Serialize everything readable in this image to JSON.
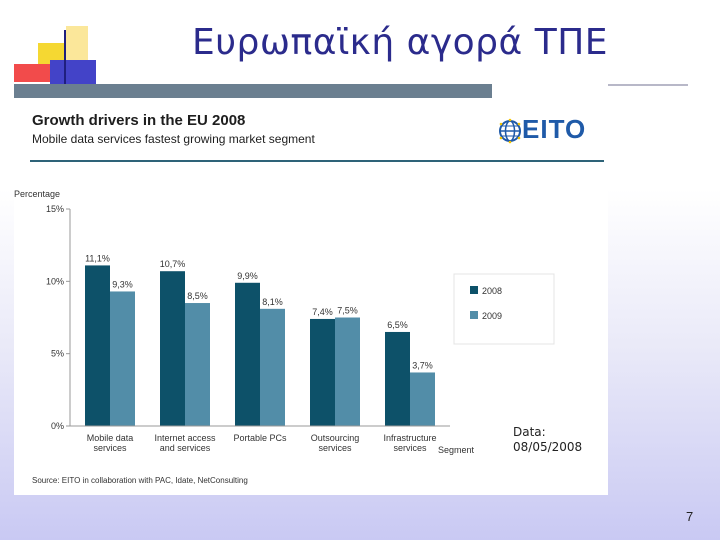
{
  "slide": {
    "title": "Ευρωπαϊκή αγορά ΤΠΕ",
    "page_number": "7",
    "data_note_line1": "Data:",
    "data_note_line2": "08/05/2008"
  },
  "panel": {
    "heading": "Growth drivers in the EU 2008",
    "subheading": "Mobile data services fastest growing market segment",
    "logo_text": "EITO",
    "source": "Source: EITO in collaboration with PAC, Idate, NetConsulting"
  },
  "chart_data": {
    "type": "bar",
    "ylabel": "Percentage",
    "xlabel": "Segment",
    "ylim": [
      0,
      15
    ],
    "yticks": [
      "0%",
      "5%",
      "10%",
      "15%"
    ],
    "categories": [
      [
        "Mobile data",
        "services"
      ],
      [
        "Internet access",
        "and services"
      ],
      [
        "Portable PCs"
      ],
      [
        "Outsourcing",
        "services"
      ],
      [
        "Infrastructure",
        "services"
      ]
    ],
    "series": [
      {
        "name": "2008",
        "color": "#0d5169",
        "values": [
          11.1,
          10.7,
          9.9,
          7.4,
          6.5
        ],
        "labels": [
          "11,1%",
          "10,7%",
          "9,9%",
          "7,4%",
          "6,5%"
        ]
      },
      {
        "name": "2009",
        "color": "#528da8",
        "values": [
          9.3,
          8.5,
          8.1,
          7.5,
          3.7
        ],
        "labels": [
          "9,3%",
          "8,5%",
          "8,1%",
          "7,5%",
          "3,7%"
        ]
      }
    ],
    "legend_position": "right",
    "grid": false
  }
}
